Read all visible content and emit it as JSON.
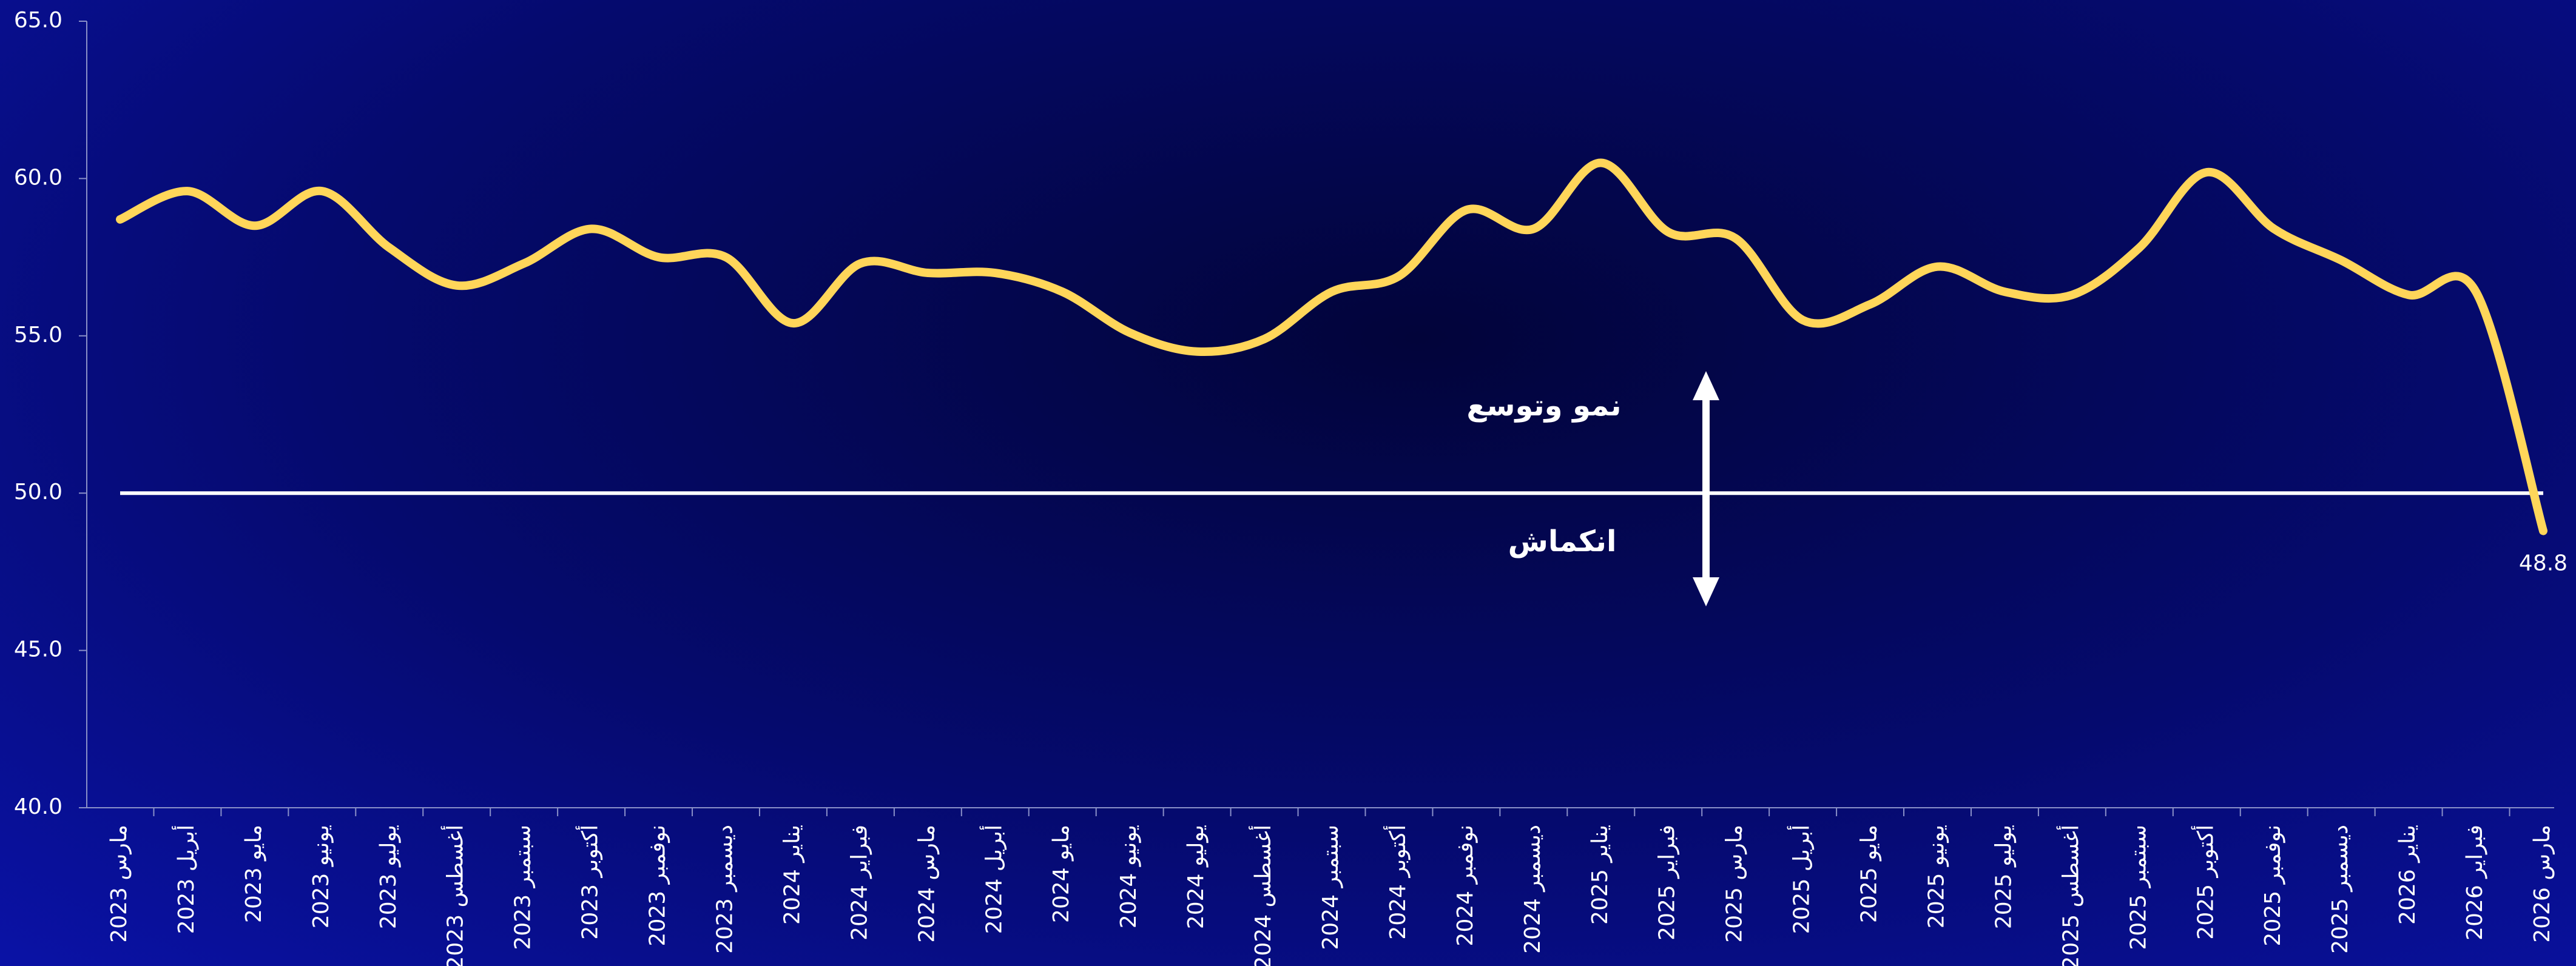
{
  "chart_data": {
    "type": "line",
    "categories": [
      "مارس 2023",
      "أبريل 2023",
      "مايو 2023",
      "يونيو 2023",
      "يوليو 2023",
      "أغسطس 2023",
      "سبتمبر 2023",
      "أكتوبر 2023",
      "نوفمبر 2023",
      "ديسمبر 2023",
      "يناير 2024",
      "فبراير 2024",
      "مارس 2024",
      "أبريل 2024",
      "مايو 2024",
      "يونيو 2024",
      "يوليو 2024",
      "أغسطس 2024",
      "سبتمبر 2024",
      "أكتوبر 2024",
      "نوفمبر 2024",
      "ديسمبر 2024",
      "يناير 2025",
      "فبراير 2025",
      "مارس 2025",
      "أبريل 2025",
      "مايو 2025",
      "يونيو 2025",
      "يوليو 2025",
      "أغسطس 2025",
      "سبتمبر 2025",
      "أكتوبر 2025",
      "نوفمبر 2025",
      "ديسمبر 2025",
      "يناير 2026",
      "فبراير 2026",
      "مارس 2026"
    ],
    "series": [
      {
        "color": "#FFD65A",
        "values": [
          58.7,
          59.6,
          58.5,
          59.6,
          57.8,
          56.6,
          57.3,
          58.4,
          57.5,
          57.5,
          55.4,
          57.3,
          57.0,
          57.0,
          56.4,
          55.1,
          54.5,
          54.9,
          56.4,
          56.9,
          59.0,
          58.4,
          60.5,
          58.3,
          58.1,
          55.5,
          56.0,
          57.2,
          56.4,
          56.3,
          57.8,
          60.2,
          58.4,
          57.4,
          56.3,
          56.4,
          48.8
        ],
        "value_labels": [
          null,
          null,
          null,
          null,
          null,
          null,
          null,
          null,
          null,
          null,
          null,
          null,
          null,
          null,
          null,
          null,
          null,
          null,
          null,
          null,
          null,
          null,
          null,
          null,
          null,
          null,
          null,
          null,
          null,
          null,
          null,
          null,
          null,
          null,
          null,
          null,
          "48.8"
        ]
      }
    ],
    "ylim": [
      40,
      65
    ],
    "yticks": [
      {
        "value": 40,
        "label": "40.0"
      },
      {
        "value": 45,
        "label": "45.0"
      },
      {
        "value": 50,
        "label": "50.0"
      },
      {
        "value": 55,
        "label": "55.0"
      },
      {
        "value": 60,
        "label": "60.0"
      },
      {
        "value": 65,
        "label": "65.0"
      }
    ],
    "reference_line": 50,
    "annotations": [
      "نمو وتوسع",
      "انكماش"
    ]
  }
}
